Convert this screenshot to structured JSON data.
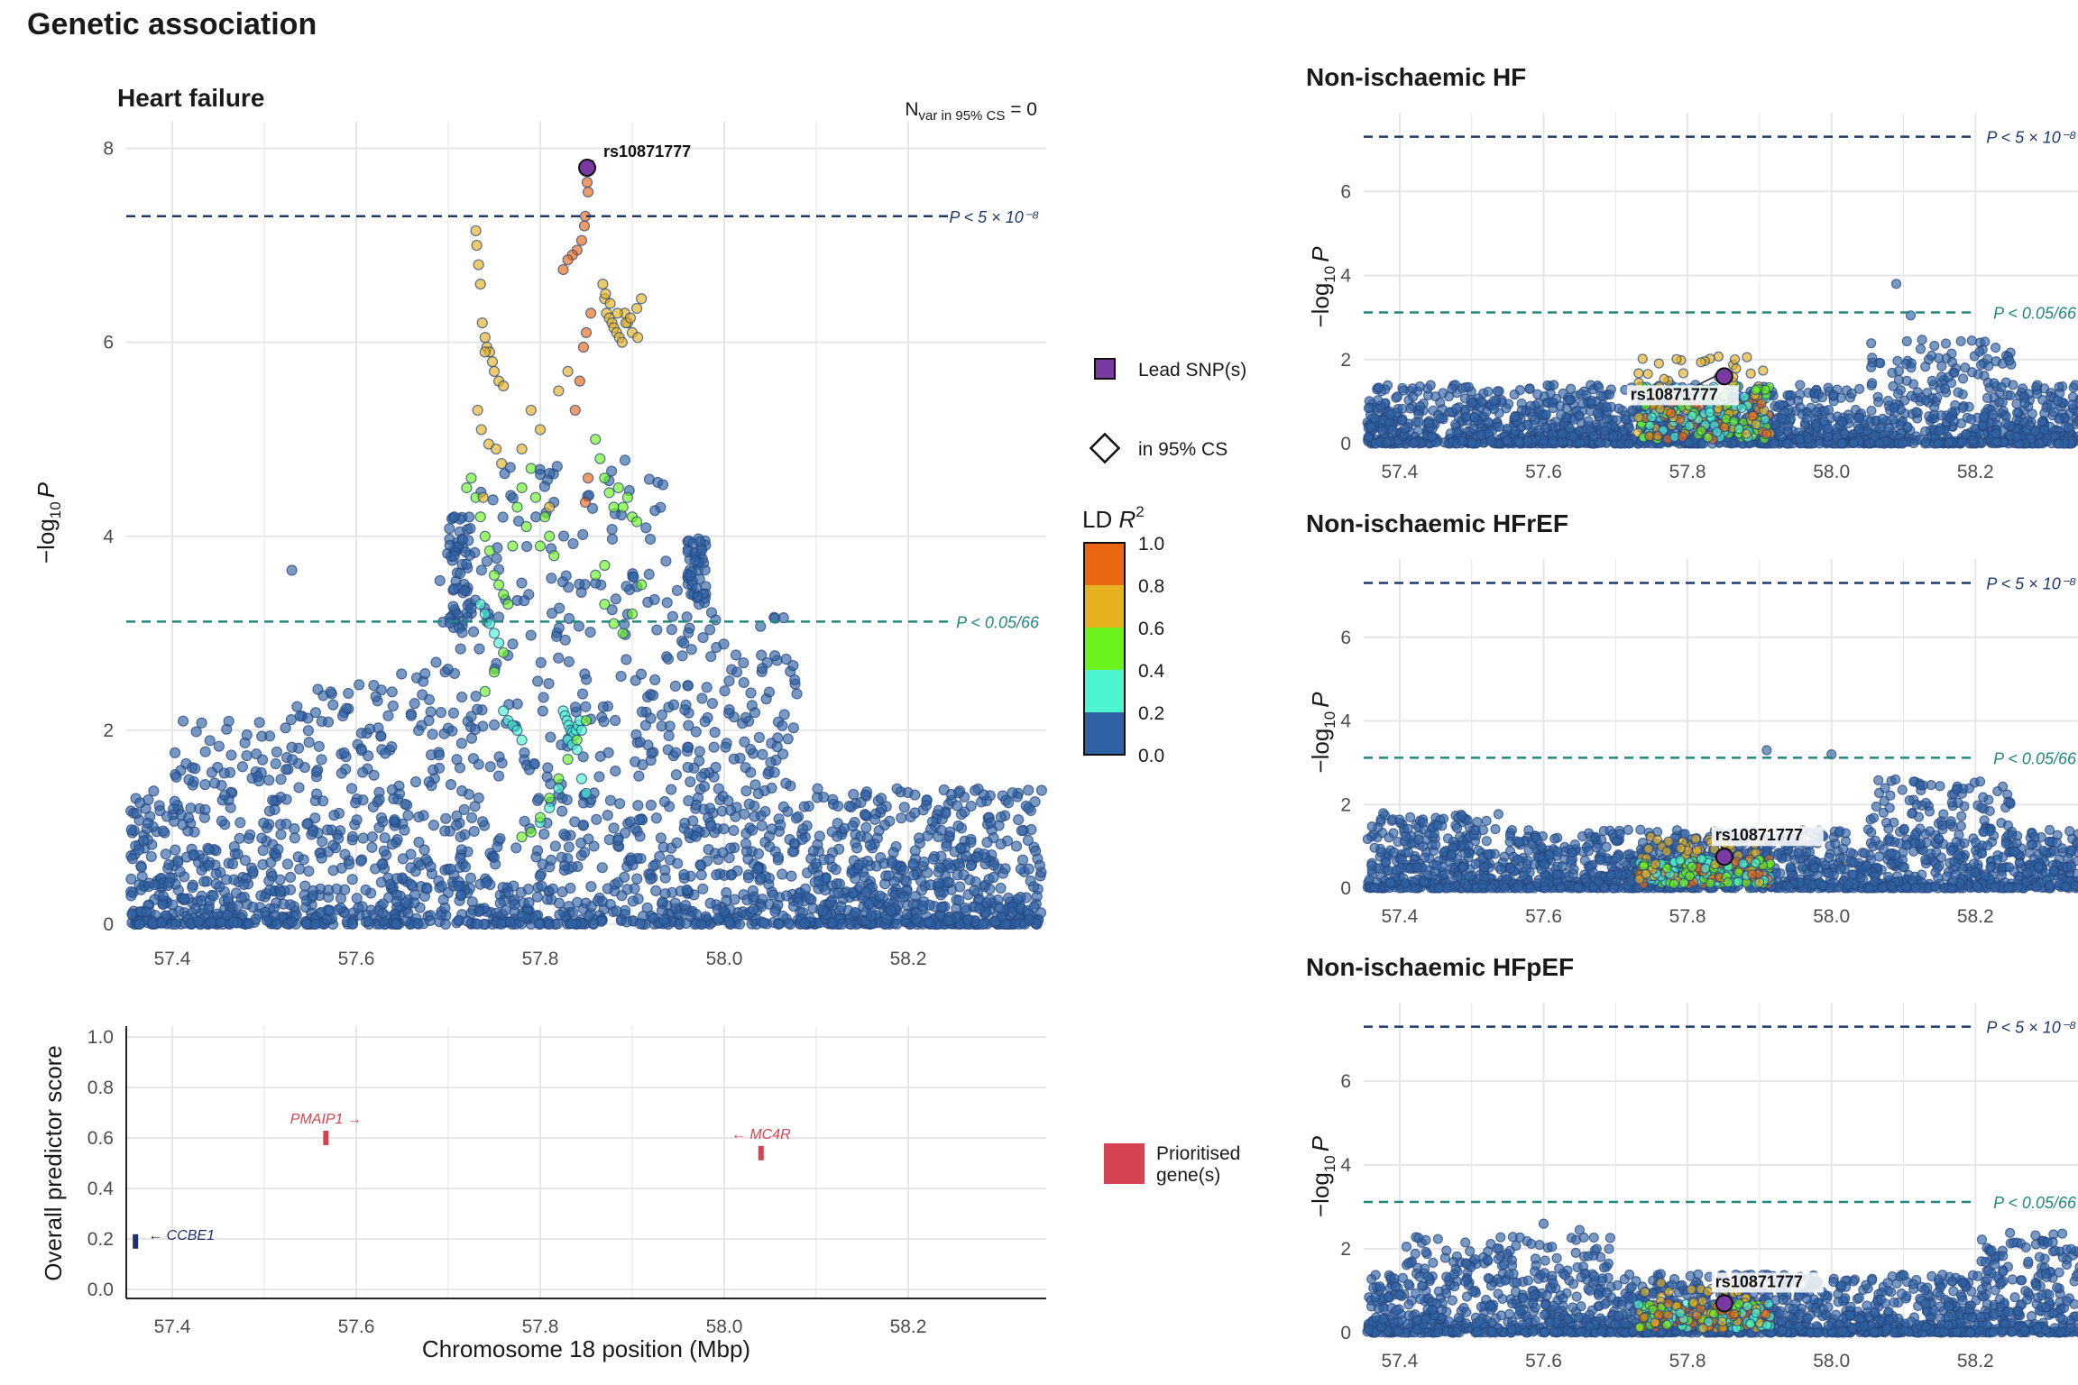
{
  "figure_title": "Genetic association",
  "colors": {
    "ld_bins": [
      "#2f62a4",
      "#4cf5d0",
      "#6cf21c",
      "#e5b11e",
      "#ea6612"
    ],
    "lead": "#7a39a3",
    "gw_line": "#1c3a6e",
    "sug_line": "#22877f",
    "gene_prioritised": "#d64350",
    "gene_other": "#1f2d6b",
    "grid": "#e6e6e6"
  },
  "thresholds": {
    "genomewide": {
      "label": "P < 5 × 10⁻⁸",
      "value": 7.3
    },
    "suggestive": {
      "label": "P < 0.05/66",
      "value": 3.12
    }
  },
  "legend": {
    "lead": "Lead SNP(s)",
    "cs": "in 95% CS",
    "ld_title": "LD R²",
    "ld_ticks": [
      "1.0",
      "0.8",
      "0.6",
      "0.4",
      "0.2",
      "0.0"
    ],
    "gene": "Prioritised gene(s)",
    "gene_lines": [
      "Prioritised",
      "gene(s)"
    ]
  },
  "nvar_label": "N var in 95% CS = 0",
  "chart_data": [
    {
      "type": "scatter",
      "title": "Heart failure",
      "xlabel": "",
      "ylabel": "−log10 P",
      "xlim": [
        57.35,
        58.35
      ],
      "ylim": [
        0,
        8.2
      ],
      "xticks": [
        "57.4",
        "57.6",
        "57.8",
        "58.0",
        "58.2"
      ],
      "yticks": [
        "0",
        "2",
        "4",
        "6",
        "8"
      ],
      "lead_snp": {
        "id": "rs10871777",
        "x": 57.851,
        "y": 7.8
      },
      "series": [
        {
          "name": "LD 0.8–1.0",
          "bin": 4,
          "x": [
            57.851,
            57.852,
            57.849,
            57.848,
            57.845,
            57.84,
            57.835,
            57.83,
            57.825,
            57.855,
            57.85,
            57.847,
            57.843,
            57.838,
            57.852,
            57.849
          ],
          "y": [
            7.65,
            7.55,
            7.3,
            7.2,
            7.05,
            6.95,
            6.9,
            6.85,
            6.75,
            6.3,
            6.1,
            5.95,
            5.6,
            5.3,
            4.6,
            4.35
          ]
        },
        {
          "name": "LD 0.6–0.8",
          "bin": 3,
          "x": [
            57.73,
            57.731,
            57.733,
            57.735,
            57.737,
            57.74,
            57.742,
            57.745,
            57.748,
            57.75,
            57.755,
            57.76,
            57.732,
            57.736,
            57.744,
            57.752,
            57.758,
            57.78,
            57.79,
            57.8,
            57.81,
            57.87,
            57.872,
            57.875,
            57.878,
            57.88,
            57.883,
            57.886,
            57.889,
            57.892,
            57.895,
            57.9,
            57.905,
            57.868,
            57.871,
            57.876,
            57.884,
            57.893,
            57.898,
            57.91,
            57.906,
            57.82,
            57.83,
            57.74,
            57.738
          ],
          "y": [
            7.15,
            7.0,
            6.8,
            6.6,
            6.2,
            6.05,
            5.95,
            5.9,
            5.8,
            5.7,
            5.6,
            5.55,
            5.3,
            5.1,
            4.95,
            4.9,
            4.75,
            4.9,
            5.3,
            5.1,
            4.3,
            6.45,
            6.3,
            6.25,
            6.2,
            6.15,
            6.1,
            6.05,
            6.0,
            6.3,
            6.2,
            6.1,
            6.35,
            6.6,
            6.5,
            6.4,
            6.3,
            6.2,
            6.25,
            6.45,
            6.05,
            5.5,
            5.7,
            5.9,
            4.4
          ]
        },
        {
          "name": "LD 0.4–0.6",
          "bin": 2,
          "x": [
            57.72,
            57.725,
            57.73,
            57.735,
            57.74,
            57.745,
            57.75,
            57.755,
            57.76,
            57.765,
            57.77,
            57.775,
            57.78,
            57.785,
            57.79,
            57.795,
            57.8,
            57.805,
            57.81,
            57.815,
            57.86,
            57.865,
            57.87,
            57.875,
            57.88,
            57.885,
            57.89,
            57.895,
            57.9,
            57.905,
            57.91,
            57.87,
            57.88,
            57.89,
            57.86,
            57.87,
            57.9,
            57.85,
            57.84,
            57.83,
            57.82,
            57.81,
            57.8,
            57.79,
            57.78,
            57.76,
            57.75,
            57.74
          ],
          "y": [
            4.5,
            4.6,
            4.4,
            4.2,
            4.0,
            3.85,
            3.6,
            3.5,
            3.4,
            3.3,
            3.9,
            4.3,
            4.5,
            4.1,
            4.7,
            4.4,
            3.9,
            4.2,
            4.0,
            3.8,
            5.0,
            4.8,
            4.6,
            4.45,
            4.3,
            4.5,
            4.3,
            4.4,
            4.2,
            4.15,
            3.5,
            3.3,
            3.1,
            3.0,
            3.6,
            3.7,
            3.2,
            2.1,
            1.9,
            1.7,
            1.5,
            1.3,
            1.1,
            0.95,
            0.9,
            2.8,
            2.6,
            2.4
          ]
        },
        {
          "name": "LD 0.2–0.4",
          "bin": 1,
          "x": [
            57.735,
            57.74,
            57.745,
            57.75,
            57.755,
            57.76,
            57.765,
            57.77,
            57.775,
            57.78,
            57.825,
            57.827,
            57.829,
            57.831,
            57.833,
            57.835,
            57.837,
            57.839,
            57.841,
            57.843,
            57.845,
            57.83,
            57.835,
            57.84,
            57.82,
            57.845,
            57.85,
            57.81,
            57.8
          ],
          "y": [
            3.3,
            3.2,
            3.1,
            3.0,
            2.9,
            2.2,
            2.1,
            2.05,
            2.0,
            1.9,
            2.2,
            2.15,
            2.1,
            2.05,
            2.0,
            1.98,
            1.95,
            2.0,
            2.05,
            2.1,
            2.0,
            1.9,
            1.85,
            1.8,
            1.4,
            1.5,
            1.35,
            1.2,
            1.05
          ]
        }
      ]
    },
    {
      "type": "scatter",
      "title": "Non-ischaemic HF",
      "ylabel": "−log10 P",
      "xlim": [
        57.35,
        58.35
      ],
      "ylim": [
        0,
        7.7
      ],
      "xticks": [
        "57.4",
        "57.6",
        "57.8",
        "58.0",
        "58.2"
      ],
      "yticks": [
        "0",
        "2",
        "4",
        "6"
      ],
      "lead_snp": {
        "id": "rs10871777",
        "x": 57.851,
        "y": 1.6
      },
      "notable_points": [
        {
          "x": 58.09,
          "y": 3.8
        },
        {
          "x": 58.11,
          "y": 3.05
        }
      ]
    },
    {
      "type": "scatter",
      "title": "Non-ischaemic HFrEF",
      "ylabel": "−log10 P",
      "xlim": [
        57.35,
        58.35
      ],
      "ylim": [
        0,
        7.7
      ],
      "xticks": [
        "57.4",
        "57.6",
        "57.8",
        "58.0",
        "58.2"
      ],
      "yticks": [
        "0",
        "2",
        "4",
        "6"
      ],
      "lead_snp": {
        "id": "rs10871777",
        "x": 57.851,
        "y": 0.75
      },
      "notable_points": [
        {
          "x": 57.91,
          "y": 3.3
        },
        {
          "x": 58.0,
          "y": 3.2
        }
      ]
    },
    {
      "type": "scatter",
      "title": "Non-ischaemic HFpEF",
      "ylabel": "−log10 P",
      "xlim": [
        57.35,
        58.35
      ],
      "ylim": [
        0,
        7.7
      ],
      "xticks": [
        "57.4",
        "57.6",
        "57.8",
        "58.0",
        "58.2"
      ],
      "yticks": [
        "0",
        "2",
        "4",
        "6"
      ],
      "lead_snp": {
        "id": "rs10871777",
        "x": 57.851,
        "y": 0.7
      },
      "notable_points": [
        {
          "x": 57.6,
          "y": 2.6
        },
        {
          "x": 57.65,
          "y": 2.45
        }
      ]
    },
    {
      "type": "scatter",
      "title": "",
      "xlabel": "Chromosome 18 position (Mbp)",
      "ylabel": "Overall predictor score",
      "xlim": [
        57.35,
        58.35
      ],
      "ylim": [
        0,
        1.0
      ],
      "xticks": [
        "57.4",
        "57.6",
        "57.8",
        "58.0",
        "58.2"
      ],
      "yticks": [
        "0.0",
        "0.2",
        "0.4",
        "0.6",
        "0.8",
        "1.0"
      ],
      "genes": [
        {
          "name": "PMAIP1",
          "arrow": "→",
          "x": 57.567,
          "score": 0.6,
          "prioritised": true
        },
        {
          "name": "MC4R",
          "arrow": "←",
          "x": 58.04,
          "score": 0.54,
          "prioritised": true
        },
        {
          "name": "CCBE1",
          "arrow": "←",
          "x": 57.36,
          "score": 0.19,
          "prioritised": false
        }
      ]
    }
  ]
}
